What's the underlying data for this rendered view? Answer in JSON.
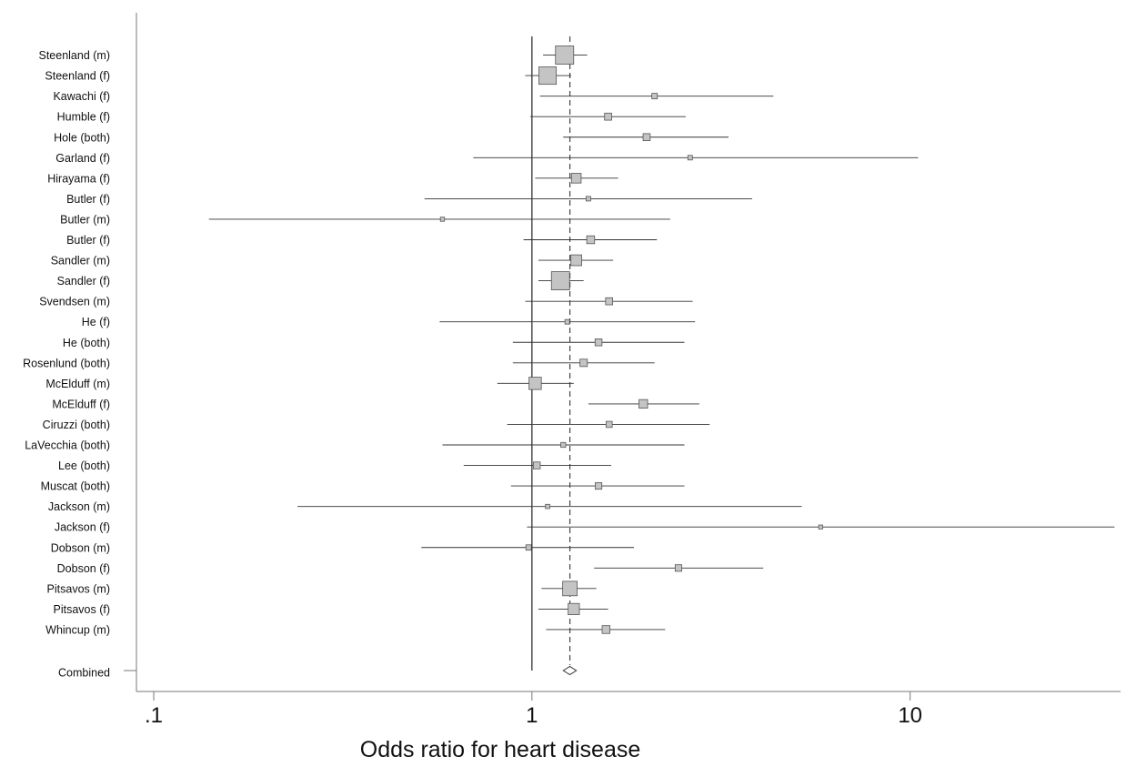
{
  "chart_data": {
    "type": "forest",
    "title": "",
    "xlabel": "Odds ratio for heart disease",
    "ylabel": "",
    "x_scale": "log",
    "xlim": [
      0.09,
      36
    ],
    "x_ticks": [
      {
        "value": 0.1,
        "label": ".1"
      },
      {
        "value": 1,
        "label": "1"
      },
      {
        "value": 10,
        "label": "10"
      }
    ],
    "reference_line": 1,
    "combined_line": 1.26,
    "studies": [
      {
        "label": "Steenland (m)",
        "or": 1.22,
        "lo": 1.07,
        "hi": 1.4,
        "weight": 1.0
      },
      {
        "label": "Steenland (f)",
        "or": 1.1,
        "lo": 0.96,
        "hi": 1.27,
        "weight": 0.95
      },
      {
        "label": "Kawachi (f)",
        "or": 2.11,
        "lo": 1.05,
        "hi": 4.35,
        "weight": 0.18
      },
      {
        "label": "Humble (f)",
        "or": 1.59,
        "lo": 0.99,
        "hi": 2.55,
        "weight": 0.28
      },
      {
        "label": "Hole (both)",
        "or": 2.01,
        "lo": 1.21,
        "hi": 3.31,
        "weight": 0.28
      },
      {
        "label": "Garland (f)",
        "or": 2.62,
        "lo": 0.7,
        "hi": 10.5,
        "weight": 0.12
      },
      {
        "label": "Hirayama (f)",
        "or": 1.31,
        "lo": 1.02,
        "hi": 1.69,
        "weight": 0.45
      },
      {
        "label": "Butler (f)",
        "or": 1.41,
        "lo": 0.52,
        "hi": 3.82,
        "weight": 0.12
      },
      {
        "label": "Butler (m)",
        "or": 0.58,
        "lo": 0.14,
        "hi": 2.32,
        "weight": 0.09
      },
      {
        "label": "Butler (f)",
        "or": 1.43,
        "lo": 0.95,
        "hi": 2.14,
        "weight": 0.33
      },
      {
        "label": "Sandler (m)",
        "or": 1.31,
        "lo": 1.04,
        "hi": 1.64,
        "weight": 0.52
      },
      {
        "label": "Sandler (f)",
        "or": 1.19,
        "lo": 1.04,
        "hi": 1.37,
        "weight": 1.0
      },
      {
        "label": "Svendsen (m)",
        "or": 1.6,
        "lo": 0.96,
        "hi": 2.66,
        "weight": 0.28
      },
      {
        "label": "He (f)",
        "or": 1.24,
        "lo": 0.57,
        "hi": 2.7,
        "weight": 0.12
      },
      {
        "label": "He (both)",
        "or": 1.5,
        "lo": 0.89,
        "hi": 2.53,
        "weight": 0.27
      },
      {
        "label": "Rosenlund (both)",
        "or": 1.37,
        "lo": 0.89,
        "hi": 2.11,
        "weight": 0.3
      },
      {
        "label": "McElduff (m)",
        "or": 1.02,
        "lo": 0.81,
        "hi": 1.29,
        "weight": 0.62
      },
      {
        "label": "McElduff (f)",
        "or": 1.97,
        "lo": 1.41,
        "hi": 2.77,
        "weight": 0.38
      },
      {
        "label": "Ciruzzi (both)",
        "or": 1.6,
        "lo": 0.86,
        "hi": 2.95,
        "weight": 0.22
      },
      {
        "label": "LaVecchia (both)",
        "or": 1.21,
        "lo": 0.58,
        "hi": 2.53,
        "weight": 0.14
      },
      {
        "label": "Lee (both)",
        "or": 1.03,
        "lo": 0.66,
        "hi": 1.62,
        "weight": 0.27
      },
      {
        "label": "Muscat (both)",
        "or": 1.5,
        "lo": 0.88,
        "hi": 2.53,
        "weight": 0.25
      },
      {
        "label": "Jackson (m)",
        "or": 1.1,
        "lo": 0.24,
        "hi": 5.17,
        "weight": 0.1
      },
      {
        "label": "Jackson (f)",
        "or": 5.8,
        "lo": 0.97,
        "hi": 34.7,
        "weight": 0.08
      },
      {
        "label": "Dobson (m)",
        "or": 0.98,
        "lo": 0.51,
        "hi": 1.86,
        "weight": 0.17
      },
      {
        "label": "Dobson (f)",
        "or": 2.44,
        "lo": 1.46,
        "hi": 4.09,
        "weight": 0.25
      },
      {
        "label": "Pitsavos (m)",
        "or": 1.26,
        "lo": 1.06,
        "hi": 1.48,
        "weight": 0.76
      },
      {
        "label": "Pitsavos (f)",
        "or": 1.29,
        "lo": 1.04,
        "hi": 1.59,
        "weight": 0.55
      },
      {
        "label": "Whincup (m)",
        "or": 1.57,
        "lo": 1.09,
        "hi": 2.25,
        "weight": 0.33
      }
    ],
    "combined": {
      "label": "Combined",
      "or": 1.26,
      "lo": 1.21,
      "hi": 1.31
    },
    "grid": false,
    "legend": "none",
    "colors": {
      "box_fill": "#c4c4c4",
      "box_stroke": "#555555",
      "line": "#333333",
      "axis": "#777777"
    }
  }
}
